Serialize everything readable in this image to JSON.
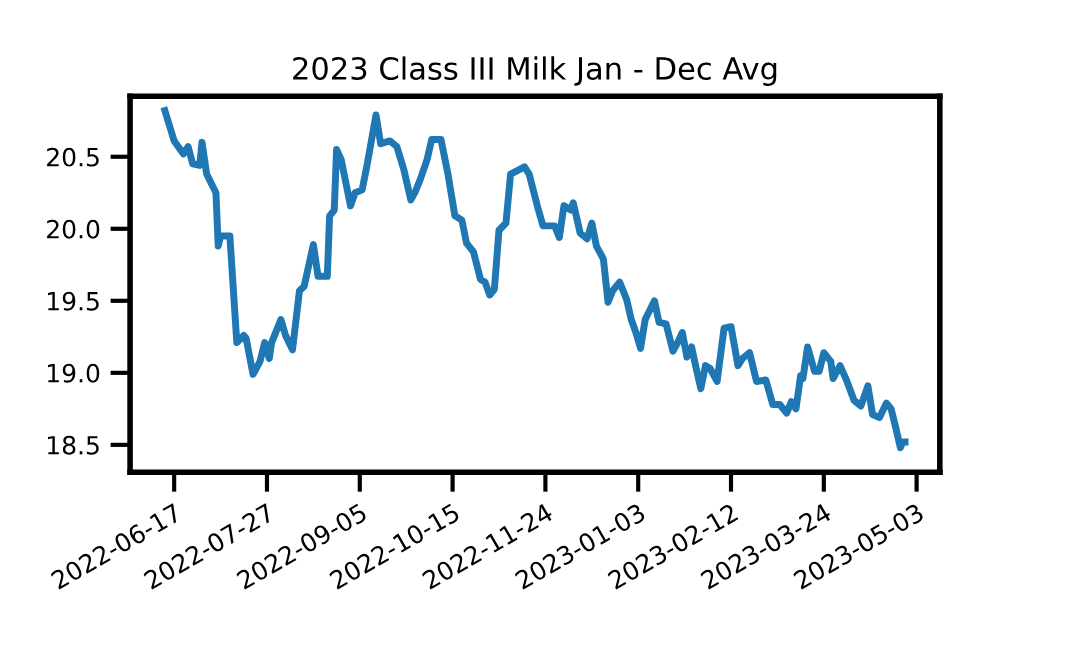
{
  "chart_data": {
    "type": "line",
    "title": "2023 Class III Milk Jan - Dec Avg",
    "x": [
      "2022-06-13",
      "2022-06-17",
      "2022-06-21",
      "2022-06-23",
      "2022-06-25",
      "2022-06-28",
      "2022-06-29",
      "2022-07-01",
      "2022-07-05",
      "2022-07-06",
      "2022-07-07",
      "2022-07-11",
      "2022-07-14",
      "2022-07-17",
      "2022-07-18",
      "2022-07-21",
      "2022-07-24",
      "2022-07-26",
      "2022-07-28",
      "2022-07-29",
      "2022-08-02",
      "2022-08-04",
      "2022-08-07",
      "2022-08-10",
      "2022-08-12",
      "2022-08-16",
      "2022-08-18",
      "2022-08-22",
      "2022-08-23",
      "2022-08-25",
      "2022-08-26",
      "2022-08-28",
      "2022-09-01",
      "2022-09-03",
      "2022-09-06",
      "2022-09-08",
      "2022-09-12",
      "2022-09-14",
      "2022-09-18",
      "2022-09-21",
      "2022-09-24",
      "2022-09-27",
      "2022-09-29",
      "2022-10-01",
      "2022-10-04",
      "2022-10-06",
      "2022-10-10",
      "2022-10-13",
      "2022-10-16",
      "2022-10-19",
      "2022-10-21",
      "2022-10-24",
      "2022-10-27",
      "2022-10-29",
      "2022-10-31",
      "2022-11-02",
      "2022-11-04",
      "2022-11-07",
      "2022-11-09",
      "2022-11-15",
      "2022-11-17",
      "2022-11-21",
      "2022-11-23",
      "2022-11-28",
      "2022-11-30",
      "2022-12-02",
      "2022-12-05",
      "2022-12-06",
      "2022-12-09",
      "2022-12-12",
      "2022-12-14",
      "2022-12-16",
      "2022-12-19",
      "2022-12-21",
      "2022-12-23",
      "2022-12-26",
      "2022-12-29",
      "2022-12-31",
      "2023-01-02",
      "2023-01-04",
      "2023-01-06",
      "2023-01-10",
      "2023-01-12",
      "2023-01-15",
      "2023-01-18",
      "2023-01-20",
      "2023-01-22",
      "2023-01-24",
      "2023-01-26",
      "2023-01-28",
      "2023-01-30",
      "2023-02-01",
      "2023-02-03",
      "2023-02-06",
      "2023-02-09",
      "2023-02-12",
      "2023-02-15",
      "2023-02-17",
      "2023-02-20",
      "2023-02-23",
      "2023-02-27",
      "2023-03-02",
      "2023-03-05",
      "2023-03-08",
      "2023-03-10",
      "2023-03-12",
      "2023-03-14",
      "2023-03-15",
      "2023-03-17",
      "2023-03-20",
      "2023-03-22",
      "2023-03-24",
      "2023-03-27",
      "2023-03-28",
      "2023-03-31",
      "2023-04-03",
      "2023-04-06",
      "2023-04-09",
      "2023-04-12",
      "2023-04-14",
      "2023-04-17",
      "2023-04-20",
      "2023-04-22",
      "2023-04-24",
      "2023-04-26",
      "2023-04-27",
      "2023-04-28"
    ],
    "series": [
      {
        "color": "#1f77b4",
        "values": [
          20.82,
          20.61,
          20.52,
          20.57,
          20.45,
          20.44,
          20.6,
          20.38,
          20.25,
          19.88,
          19.95,
          19.95,
          19.21,
          19.26,
          19.24,
          18.99,
          19.08,
          19.21,
          19.1,
          19.21,
          19.37,
          19.26,
          19.16,
          19.57,
          19.6,
          19.89,
          19.67,
          19.67,
          20.09,
          20.13,
          20.55,
          20.48,
          20.16,
          20.25,
          20.27,
          20.43,
          20.79,
          20.59,
          20.61,
          20.57,
          20.41,
          20.2,
          20.26,
          20.34,
          20.48,
          20.62,
          20.62,
          20.38,
          20.09,
          20.06,
          19.9,
          19.84,
          19.65,
          19.63,
          19.54,
          19.58,
          19.99,
          20.04,
          20.38,
          20.43,
          20.38,
          20.13,
          20.02,
          20.02,
          19.94,
          20.16,
          20.13,
          20.18,
          19.97,
          19.93,
          20.04,
          19.88,
          19.79,
          19.49,
          19.57,
          19.63,
          19.51,
          19.37,
          19.28,
          19.17,
          19.37,
          19.5,
          19.35,
          19.34,
          19.15,
          19.21,
          19.28,
          19.11,
          19.18,
          19.03,
          18.89,
          19.05,
          19.03,
          18.94,
          19.31,
          19.32,
          19.05,
          19.1,
          19.14,
          18.94,
          18.95,
          18.78,
          18.78,
          18.72,
          18.8,
          18.75,
          18.98,
          18.96,
          19.18,
          19.01,
          19.01,
          19.14,
          19.08,
          18.96,
          19.05,
          18.94,
          18.81,
          18.77,
          18.91,
          18.71,
          18.69,
          18.79,
          18.75,
          18.62,
          18.48,
          18.52,
          18.52
        ]
      }
    ],
    "xlim": [
      "2022-05-29",
      "2023-05-13"
    ],
    "xticks": [
      "2022-06-17",
      "2022-07-27",
      "2022-09-05",
      "2022-10-15",
      "2022-11-24",
      "2023-01-03",
      "2023-02-12",
      "2023-03-24",
      "2023-05-03"
    ],
    "ylim": [
      18.31,
      20.92
    ],
    "yticks": [
      18.5,
      {
        "value": 19,
        "label": "19.0"
      },
      19.5,
      {
        "value": 20,
        "label": "20.0"
      },
      20.5
    ],
    "grid": false,
    "legend": false
  }
}
